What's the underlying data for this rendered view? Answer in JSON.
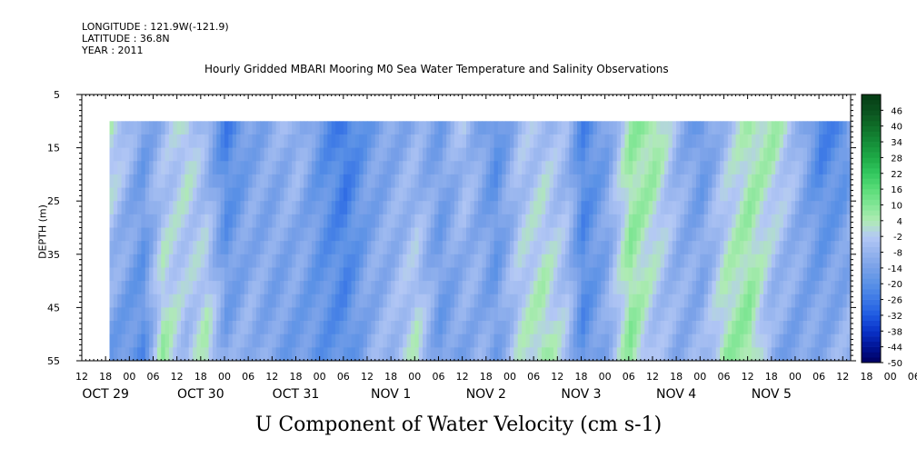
{
  "header": {
    "longitude": "LONGITUDE : 121.9W(-121.9)",
    "latitude": "LATITUDE : 36.8N",
    "year": "YEAR : 2011"
  },
  "chart_data": {
    "type": "heatmap",
    "title": "Hourly Gridded MBARI Mooring M0 Sea Water Temperature and Salinity Observations",
    "xlabel": "U Component of Water Velocity (cm s-1)",
    "ylabel": "DEPTH (m)",
    "y_axis": {
      "range": [
        5,
        55
      ],
      "inverted": true,
      "ticks": [
        5,
        15,
        25,
        35,
        45,
        55
      ],
      "data_range": [
        10,
        55
      ]
    },
    "x_axis": {
      "start": "OCT 28 12:00",
      "end": "NOV 5 14:00",
      "data_start": "OCT 28 19:00",
      "hour_tick_labels": [
        "12",
        "18",
        "00",
        "06",
        "12",
        "18",
        "00",
        "06",
        "12",
        "18",
        "00",
        "06",
        "12",
        "18",
        "00",
        "06",
        "12",
        "18",
        "00",
        "06",
        "12",
        "18",
        "00",
        "06",
        "12",
        "18",
        "00",
        "06",
        "12",
        "18",
        "00",
        "06",
        "12",
        "18",
        "00",
        "06",
        "12"
      ],
      "day_labels": [
        "OCT 29",
        "OCT 30",
        "OCT 31",
        "NOV  1",
        "NOV  2",
        "NOV  3",
        "NOV  4",
        "NOV  5"
      ]
    },
    "colorbar": {
      "levels": [
        46,
        40,
        34,
        28,
        22,
        16,
        10,
        4,
        -2,
        -8,
        -14,
        -20,
        -26,
        -32,
        -38,
        -44,
        -50
      ],
      "min": -50,
      "max": 52
    },
    "field_description": {
      "time_hours_from_oct29_00": [
        -5,
        3,
        8,
        14,
        19,
        24,
        30,
        36,
        42,
        48,
        54,
        60,
        66,
        72,
        78,
        84,
        88,
        92,
        98,
        104,
        110,
        114,
        120,
        126,
        132,
        138,
        144,
        150,
        156,
        162,
        168,
        174,
        180,
        186,
        194
      ],
      "surface_value_10m": [
        4,
        -14,
        -8,
        2,
        -10,
        -24,
        -14,
        -10,
        -6,
        -18,
        -26,
        -16,
        -12,
        -10,
        -14,
        -4,
        -12,
        -20,
        -6,
        -4,
        -8,
        -22,
        -14,
        6,
        8,
        -8,
        -18,
        -6,
        4,
        6,
        -6,
        -24,
        -20,
        2,
        -8
      ],
      "bottom_value_55m": [
        -16,
        -20,
        6,
        -6,
        4,
        -12,
        -8,
        -14,
        -16,
        -18,
        -20,
        -10,
        -6,
        2,
        -16,
        -12,
        -10,
        -14,
        0,
        6,
        -4,
        -20,
        -10,
        8,
        -6,
        -10,
        -8,
        6,
        8,
        -12,
        -14,
        -10,
        -8,
        -6,
        -8
      ]
    }
  }
}
